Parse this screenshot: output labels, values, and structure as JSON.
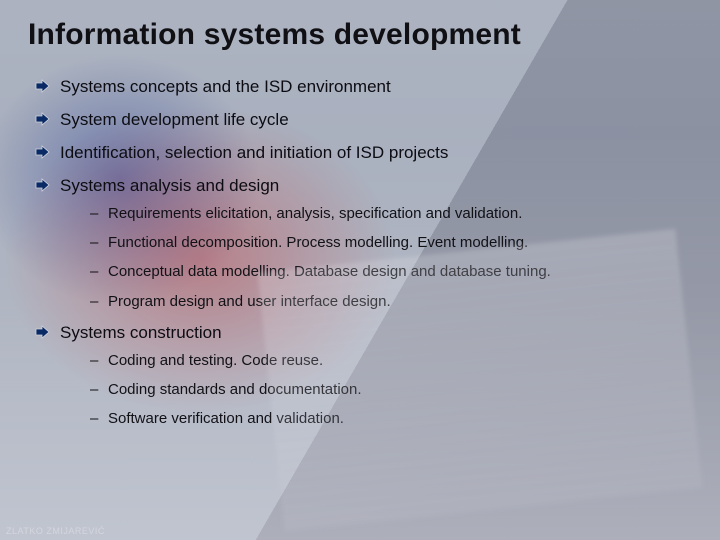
{
  "title": "Information systems development",
  "title_fontsize": 30,
  "title_color": "#0f0f14",
  "bullet_arrow_fill": "#0a2a66",
  "bullet_arrow_stroke": "#d0d4dc",
  "body_text_color": "#0c0c12",
  "sub_text_color": "#111116",
  "body_fontsize": 17,
  "sub_fontsize": 15,
  "background_gradient_top": "#727a8c",
  "background_gradient_bottom": "#9ea2ae",
  "accent_red": "#c81e1e",
  "accent_blue": "#1e328c",
  "items": [
    {
      "text": "Systems concepts and the ISD environment",
      "sub": []
    },
    {
      "text": "System development life cycle",
      "sub": []
    },
    {
      "text": "Identification, selection and initiation of ISD projects",
      "sub": []
    },
    {
      "text": "Systems analysis and design",
      "sub": [
        "Requirements elicitation, analysis, specification and validation.",
        "Functional decomposition. Process modelling. Event modelling.",
        "Conceptual data modelling.  Database design and database tuning.",
        "Program design and user interface design."
      ]
    },
    {
      "text": "Systems construction",
      "sub": [
        "Coding and testing. Code reuse.",
        "Coding standards and documentation.",
        "Software verification and validation."
      ]
    }
  ],
  "footer": "ZLATKO ZMIJAREVIĆ"
}
